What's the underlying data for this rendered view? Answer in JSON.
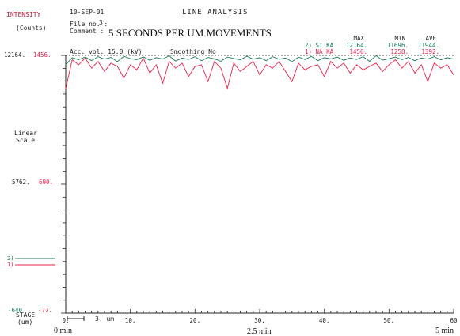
{
  "header": {
    "intensity_label": "INTENSITY",
    "counts_label": "(Counts)",
    "date": "10-SEP-01",
    "title": "LINE ANALYSIS",
    "file_label": "File no. :",
    "file_no": "3",
    "comment_label": "Comment :",
    "comment_text": "5 SECONDS PER UM MOVEMENTS",
    "acc_vol": "Acc. vol.  15.0 (kV)",
    "smoothing": "Smoothing No"
  },
  "stats": {
    "headers": [
      "MAX",
      "MIN",
      "AVE"
    ],
    "rows": [
      {
        "label": "2) SI KA",
        "max": "12164.",
        "min": "11696.",
        "ave": "11944.",
        "color": "#1a7a55"
      },
      {
        "label": "1) NA KA",
        "max": "1456.",
        "min": "1258.",
        "ave": "1392.",
        "color": "#e8204a"
      }
    ]
  },
  "left_axis": {
    "top_si": "12164.",
    "top_na": "1456.",
    "mid_si": "5762.",
    "mid_na": "690.",
    "bottom_si": "-640",
    "bottom_na": "-77.",
    "scale_line1": "Linear",
    "scale_line2": "Scale",
    "legend_2": "2)",
    "legend_1": "1)",
    "stage_label": "STAGE",
    "stage_unit": "(um)"
  },
  "bottom_axis": {
    "scale_bar_label": "3. um",
    "time_labels": [
      "0 min",
      "2.5 min",
      "5 min"
    ]
  },
  "colors": {
    "si": "#1a7a55",
    "na": "#e8204a",
    "axis": "#222222"
  },
  "chart_data": {
    "type": "line",
    "xlabel": "STAGE (um)",
    "ylabel": "INTENSITY (Counts)",
    "xlim": [
      0,
      60
    ],
    "x_ticks": [
      "0.",
      "10.",
      "20.",
      "30.",
      "40.",
      "50.",
      "60"
    ],
    "series": [
      {
        "name": "2) SI KA",
        "ylim": [
          -640,
          12164
        ],
        "x": [
          0,
          1,
          2,
          3,
          4,
          5,
          6,
          7,
          8,
          9,
          10,
          11,
          12,
          13,
          14,
          15,
          16,
          17,
          18,
          19,
          20,
          21,
          22,
          23,
          24,
          25,
          26,
          27,
          28,
          29,
          30,
          31,
          32,
          33,
          34,
          35,
          36,
          37,
          38,
          39,
          40,
          41,
          42,
          43,
          44,
          45,
          46,
          47,
          48,
          49,
          50,
          51,
          52,
          53,
          54,
          55,
          56,
          57,
          58,
          59,
          60
        ],
        "values": [
          11700,
          12050,
          11950,
          12080,
          11900,
          12100,
          11980,
          12060,
          11850,
          12120,
          12000,
          11950,
          12090,
          11920,
          12050,
          11980,
          12140,
          11880,
          12030,
          11960,
          12100,
          11900,
          12060,
          11990,
          11870,
          12080,
          12010,
          11940,
          12120,
          11980,
          12050,
          11900,
          12100,
          11970,
          12030,
          11850,
          12080,
          11960,
          12110,
          11900,
          12050,
          11990,
          12080,
          11920,
          12040,
          11960,
          12100,
          11870,
          12150,
          11930,
          12000,
          12080,
          11950,
          12060,
          11900,
          12040,
          11980,
          12100,
          11940,
          12050,
          11980
        ]
      },
      {
        "name": "1) NA KA",
        "ylim": [
          -77,
          1456
        ],
        "x": [
          0,
          1,
          2,
          3,
          4,
          5,
          6,
          7,
          8,
          9,
          10,
          11,
          12,
          13,
          14,
          15,
          16,
          17,
          18,
          19,
          20,
          21,
          22,
          23,
          24,
          25,
          26,
          27,
          28,
          29,
          30,
          31,
          32,
          33,
          34,
          35,
          36,
          37,
          38,
          39,
          40,
          41,
          42,
          43,
          44,
          45,
          46,
          47,
          48,
          49,
          50,
          51,
          52,
          53,
          54,
          55,
          56,
          57,
          58,
          59,
          60
        ],
        "values": [
          1258,
          1430,
          1400,
          1440,
          1380,
          1420,
          1360,
          1410,
          1390,
          1320,
          1400,
          1370,
          1440,
          1350,
          1400,
          1290,
          1420,
          1380,
          1410,
          1330,
          1390,
          1400,
          1300,
          1420,
          1380,
          1260,
          1410,
          1360,
          1390,
          1420,
          1340,
          1400,
          1380,
          1420,
          1360,
          1300,
          1410,
          1370,
          1390,
          1400,
          1330,
          1420,
          1380,
          1410,
          1350,
          1400,
          1370,
          1390,
          1410,
          1360,
          1400,
          1430,
          1380,
          1420,
          1350,
          1400,
          1300,
          1410,
          1380,
          1400,
          1340
        ]
      }
    ]
  }
}
